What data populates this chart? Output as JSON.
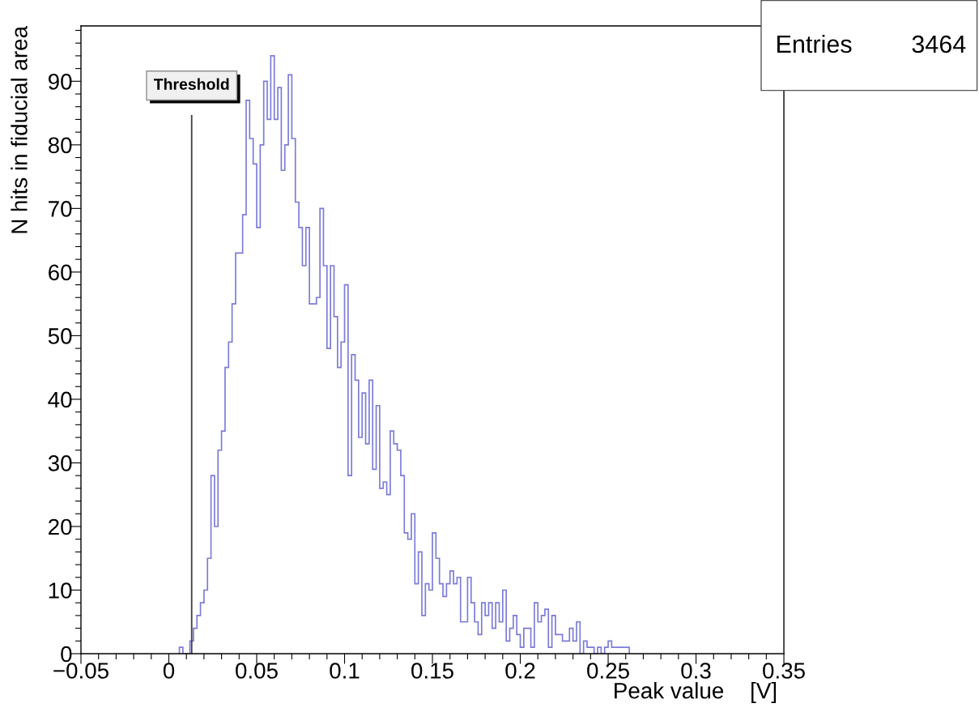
{
  "chart_data": {
    "type": "histogram",
    "xlabel": "Peak value",
    "ylabel": "N hits in fiducial area",
    "bins": [
      0.006,
      0.008,
      0.01,
      0.012,
      0.014,
      0.016,
      0.018,
      0.02,
      0.022,
      0.024,
      0.026,
      0.028,
      0.03,
      0.032,
      0.034,
      0.036,
      0.038,
      0.04,
      0.042,
      0.044,
      0.046,
      0.048,
      0.05,
      0.052,
      0.054,
      0.056,
      0.058,
      0.06,
      0.062,
      0.064,
      0.066,
      0.068,
      0.07,
      0.072,
      0.074,
      0.076,
      0.078,
      0.08,
      0.082,
      0.084,
      0.086,
      0.088,
      0.09,
      0.092,
      0.094,
      0.096,
      0.098,
      0.1,
      0.102,
      0.104,
      0.106,
      0.108,
      0.11,
      0.112,
      0.114,
      0.116,
      0.118,
      0.12,
      0.122,
      0.124,
      0.126,
      0.128,
      0.13,
      0.132,
      0.134,
      0.136,
      0.138,
      0.14,
      0.142,
      0.144,
      0.146,
      0.148,
      0.15,
      0.152,
      0.154,
      0.156,
      0.158,
      0.16,
      0.162,
      0.164,
      0.166,
      0.168,
      0.17,
      0.172,
      0.174,
      0.176,
      0.178,
      0.18,
      0.182,
      0.184,
      0.186,
      0.188,
      0.19,
      0.192,
      0.194,
      0.196,
      0.198,
      0.2,
      0.202,
      0.204,
      0.206,
      0.208,
      0.21,
      0.212,
      0.214,
      0.216,
      0.218,
      0.22,
      0.222,
      0.224,
      0.226,
      0.228,
      0.23,
      0.232,
      0.234,
      0.236,
      0.238,
      0.24,
      0.242,
      0.244,
      0.246,
      0.248,
      0.25,
      0.252,
      0.254,
      0.256,
      0.258,
      0.26,
      0.262
    ],
    "values": [
      1,
      0,
      0,
      2,
      4,
      6,
      8,
      10,
      15,
      28,
      20,
      32,
      35,
      45,
      49,
      55,
      63,
      63,
      69,
      87,
      81,
      77,
      67,
      80,
      90,
      84,
      94,
      84,
      89,
      76,
      80,
      91,
      81,
      71,
      67,
      61,
      67,
      55,
      55,
      56,
      70,
      61,
      48,
      61,
      53,
      45,
      49,
      58,
      28,
      47,
      43,
      34,
      41,
      33,
      43,
      29,
      39,
      26,
      27,
      25,
      35,
      33,
      32,
      28,
      19,
      18,
      22,
      11,
      16,
      6,
      11,
      10,
      19,
      15,
      11,
      9,
      11,
      13,
      11,
      12,
      5,
      5,
      12,
      8,
      5,
      3,
      8,
      6,
      8,
      4,
      8,
      5,
      10,
      2,
      4,
      6,
      3,
      1,
      4,
      4,
      1,
      8,
      5,
      6,
      7,
      1,
      6,
      3,
      3,
      2,
      2,
      4,
      2,
      5,
      0,
      2,
      1,
      1,
      0,
      1,
      0,
      1,
      2,
      1,
      1,
      1,
      1,
      1
    ],
    "color": "#7b7bd9",
    "xlim": [
      -0.05,
      0.35
    ],
    "ylim": [
      0,
      98.7
    ],
    "xticks": [
      {
        "value": -0.05,
        "label": "−0.05"
      },
      {
        "value": -0.04,
        "label": null
      },
      {
        "value": -0.03,
        "label": null
      },
      {
        "value": -0.02,
        "label": null
      },
      {
        "value": -0.01,
        "label": null
      },
      0,
      {
        "value": 0.01,
        "label": null
      },
      {
        "value": 0.02,
        "label": null
      },
      {
        "value": 0.03,
        "label": null
      },
      {
        "value": 0.04,
        "label": null
      },
      0.05,
      {
        "value": 0.06,
        "label": null
      },
      {
        "value": 0.07,
        "label": null
      },
      {
        "value": 0.08,
        "label": null
      },
      {
        "value": 0.09,
        "label": null
      },
      0.1,
      {
        "value": 0.11,
        "label": null
      },
      {
        "value": 0.12,
        "label": null
      },
      {
        "value": 0.13,
        "label": null
      },
      {
        "value": 0.14,
        "label": null
      },
      0.15,
      {
        "value": 0.16,
        "label": null
      },
      {
        "value": 0.17,
        "label": null
      },
      {
        "value": 0.18,
        "label": null
      },
      {
        "value": 0.19,
        "label": null
      },
      0.2,
      {
        "value": 0.21,
        "label": null
      },
      {
        "value": 0.22,
        "label": null
      },
      {
        "value": 0.23,
        "label": null
      },
      {
        "value": 0.24,
        "label": null
      },
      0.25,
      {
        "value": 0.26,
        "label": null
      },
      {
        "value": 0.27,
        "label": null
      },
      {
        "value": 0.28,
        "label": null
      },
      {
        "value": 0.29,
        "label": null
      },
      0.3,
      {
        "value": 0.31,
        "label": null
      },
      {
        "value": 0.32,
        "label": null
      },
      {
        "value": 0.33,
        "label": null
      },
      {
        "value": 0.34,
        "label": null
      },
      0.35
    ],
    "yticks": [
      0,
      {
        "value": 2,
        "label": null
      },
      {
        "value": 4,
        "label": null
      },
      {
        "value": 6,
        "label": null
      },
      {
        "value": 8,
        "label": null
      },
      10,
      {
        "value": 12,
        "label": null
      },
      {
        "value": 14,
        "label": null
      },
      {
        "value": 16,
        "label": null
      },
      {
        "value": 18,
        "label": null
      },
      20,
      {
        "value": 22,
        "label": null
      },
      {
        "value": 24,
        "label": null
      },
      {
        "value": 26,
        "label": null
      },
      {
        "value": 28,
        "label": null
      },
      30,
      {
        "value": 32,
        "label": null
      },
      {
        "value": 34,
        "label": null
      },
      {
        "value": 36,
        "label": null
      },
      {
        "value": 38,
        "label": null
      },
      40,
      {
        "value": 42,
        "label": null
      },
      {
        "value": 44,
        "label": null
      },
      {
        "value": 46,
        "label": null
      },
      {
        "value": 48,
        "label": null
      },
      50,
      {
        "value": 52,
        "label": null
      },
      {
        "value": 54,
        "label": null
      },
      {
        "value": 56,
        "label": null
      },
      {
        "value": 58,
        "label": null
      },
      60,
      {
        "value": 62,
        "label": null
      },
      {
        "value": 64,
        "label": null
      },
      {
        "value": 66,
        "label": null
      },
      {
        "value": 68,
        "label": null
      },
      70,
      {
        "value": 72,
        "label": null
      },
      {
        "value": 74,
        "label": null
      },
      {
        "value": 76,
        "label": null
      },
      {
        "value": 78,
        "label": null
      },
      80,
      {
        "value": 82,
        "label": null
      },
      {
        "value": 84,
        "label": null
      },
      {
        "value": 86,
        "label": null
      },
      {
        "value": 88,
        "label": null
      },
      90,
      {
        "value": 92,
        "label": null
      },
      {
        "value": 94,
        "label": null
      },
      {
        "value": 96,
        "label": null
      },
      {
        "value": 98,
        "label": null
      }
    ],
    "ref_lines": [
      {
        "axis": "x",
        "value": 0.013,
        "label": "Threshold",
        "color": "#404040"
      }
    ],
    "annotations": [
      "[V]",
      "Entries",
      "3464"
    ],
    "grid": false,
    "legend": false
  }
}
